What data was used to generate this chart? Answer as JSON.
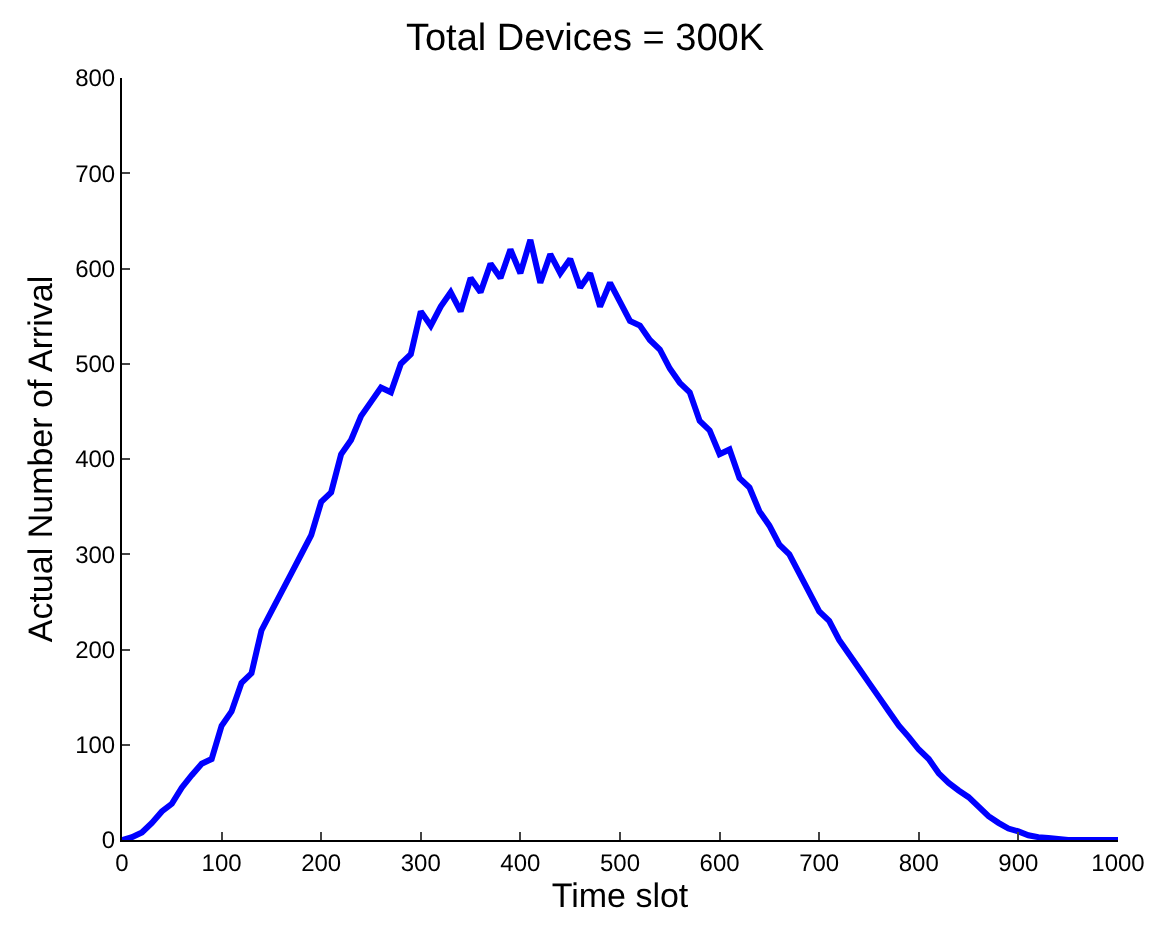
{
  "chart_data": {
    "type": "line",
    "title": "Total Devices = 300K",
    "xlabel": "Time slot",
    "ylabel": "Actual Number of Arrival",
    "x": [
      0,
      10,
      20,
      30,
      40,
      50,
      60,
      70,
      80,
      90,
      100,
      110,
      120,
      130,
      140,
      150,
      160,
      170,
      180,
      190,
      200,
      210,
      220,
      230,
      240,
      250,
      260,
      270,
      280,
      290,
      300,
      310,
      320,
      330,
      340,
      350,
      360,
      370,
      380,
      390,
      400,
      410,
      420,
      430,
      440,
      450,
      460,
      470,
      480,
      490,
      500,
      510,
      520,
      530,
      540,
      550,
      560,
      570,
      580,
      590,
      600,
      610,
      620,
      630,
      640,
      650,
      660,
      670,
      680,
      690,
      700,
      710,
      720,
      730,
      740,
      750,
      760,
      770,
      780,
      790,
      800,
      810,
      820,
      830,
      840,
      850,
      860,
      870,
      880,
      890,
      900,
      910,
      920,
      930,
      940,
      950,
      960,
      970,
      980,
      990,
      1000
    ],
    "series": [
      {
        "color": "#0000ff",
        "values": [
          0,
          3,
          8,
          18,
          30,
          38,
          55,
          68,
          80,
          85,
          120,
          135,
          165,
          175,
          220,
          240,
          260,
          280,
          300,
          320,
          355,
          365,
          405,
          420,
          445,
          460,
          475,
          470,
          500,
          510,
          555,
          540,
          560,
          575,
          555,
          590,
          575,
          605,
          590,
          620,
          595,
          630,
          585,
          615,
          595,
          610,
          580,
          595,
          560,
          585,
          565,
          545,
          540,
          525,
          515,
          495,
          480,
          470,
          440,
          430,
          405,
          410,
          380,
          370,
          345,
          330,
          310,
          300,
          280,
          260,
          240,
          230,
          210,
          195,
          180,
          165,
          150,
          135,
          120,
          108,
          95,
          85,
          70,
          60,
          52,
          45,
          35,
          25,
          18,
          12,
          9,
          5,
          3,
          2,
          1,
          0,
          0,
          0,
          0,
          0,
          0
        ]
      }
    ],
    "xlim": [
      0,
      1000
    ],
    "xticks": [
      0,
      100,
      200,
      300,
      400,
      500,
      600,
      700,
      800,
      900,
      1000
    ],
    "ylim": [
      0,
      800
    ],
    "yticks": [
      0,
      100,
      200,
      300,
      400,
      500,
      600,
      700,
      800
    ],
    "line_style": "solid",
    "marker": "none"
  }
}
